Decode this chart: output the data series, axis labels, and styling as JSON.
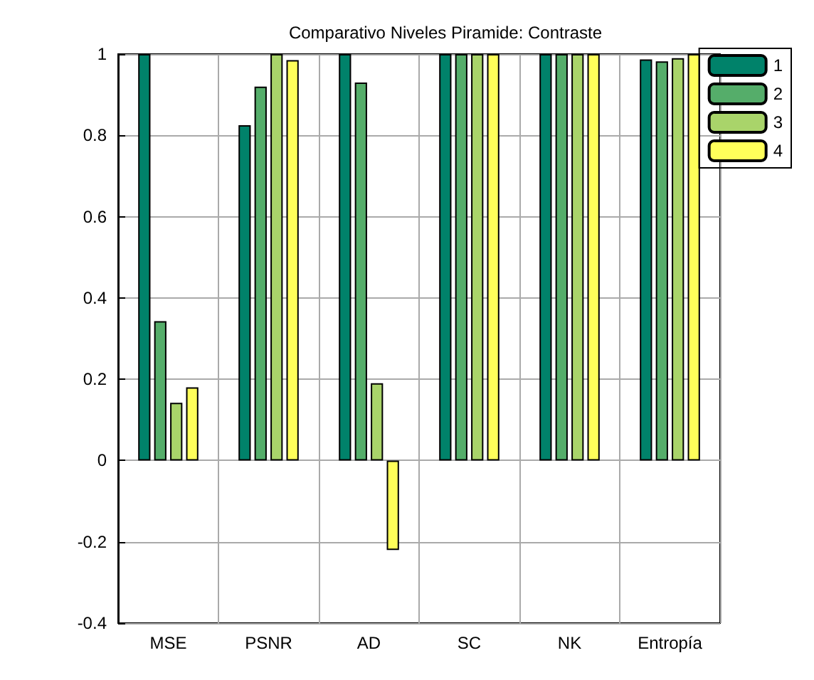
{
  "chart_data": {
    "type": "bar",
    "title": "Comparativo Niveles Piramide: Contraste",
    "categories": [
      "MSE",
      "PSNR",
      "AD",
      "SC",
      "NK",
      "Entropía"
    ],
    "series": [
      {
        "name": "1",
        "color": "#00826a",
        "values": [
          1,
          0.825,
          1,
          1,
          1,
          0.987
        ]
      },
      {
        "name": "2",
        "color": "#55ad6a",
        "values": [
          0.343,
          0.92,
          0.93,
          1,
          1,
          0.982
        ]
      },
      {
        "name": "3",
        "color": "#a9d46a",
        "values": [
          0.142,
          1,
          0.19,
          1,
          1,
          0.99
        ]
      },
      {
        "name": "4",
        "color": "#ffff5a",
        "values": [
          0.18,
          0.985,
          -0.22,
          1,
          1,
          1
        ]
      }
    ],
    "ylim": [
      -0.4,
      1
    ],
    "yticks": [
      -0.4,
      -0.2,
      0,
      0.2,
      0.4,
      0.6,
      0.8,
      1
    ],
    "grid": true,
    "legend": "top right"
  }
}
